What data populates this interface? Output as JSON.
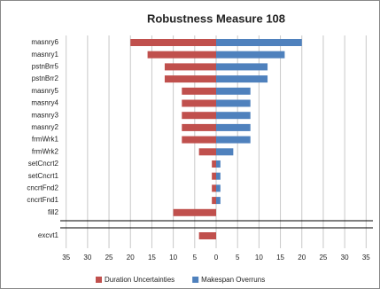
{
  "chart_data": {
    "type": "tornado",
    "title": "Robustness Measure 108",
    "categories": [
      "masnry6",
      "masnry1",
      "pstnBrr5",
      "pstnBrr2",
      "masnry5",
      "masnry4",
      "masnry3",
      "masnry2",
      "frmWrk1",
      "frmWrk2",
      "setCncrt2",
      "setCncrt1",
      "cncrtFnd2",
      "cncrtFnd1",
      "fill2",
      "excvt1"
    ],
    "series": [
      {
        "name": "Duration Uncertainties",
        "color": "#c0504d",
        "values": [
          -20,
          -16,
          -12,
          -12,
          -8,
          -8,
          -8,
          -8,
          -8,
          -4,
          -1,
          -1,
          -1,
          -1,
          -10,
          -4
        ]
      },
      {
        "name": "Makespan Overruns",
        "color": "#4f81bd",
        "values": [
          20,
          16,
          12,
          12,
          8,
          8,
          8,
          8,
          8,
          4,
          1,
          1,
          1,
          1,
          0,
          0
        ]
      }
    ],
    "xlim": [
      -37,
      37
    ],
    "xticks": [
      {
        "value": -35,
        "label": "35"
      },
      {
        "value": -30,
        "label": "30"
      },
      {
        "value": -25,
        "label": "25"
      },
      {
        "value": -20,
        "label": "20"
      },
      {
        "value": -15,
        "label": "15"
      },
      {
        "value": -10,
        "label": "10"
      },
      {
        "value": -5,
        "label": "5"
      },
      0,
      5,
      10,
      15,
      20,
      25,
      30,
      35
    ],
    "grid": true,
    "legend": "bottom"
  }
}
